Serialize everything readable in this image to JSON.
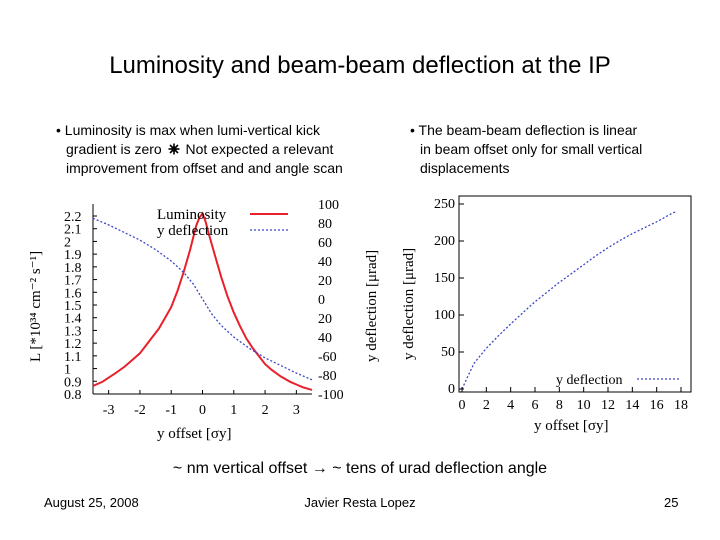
{
  "slide": {
    "title": "Luminosity and beam-beam deflection at the IP",
    "left_bullet": {
      "line1": "• Luminosity is max when lumi-vertical kick",
      "line2_pre": "gradient is zero",
      "line2_post": "Not expected a relevant",
      "line3": "improvement from offset and and angle scan"
    },
    "right_bullet": {
      "line1": "• The beam-beam deflection is  linear",
      "line2": "in beam offset only for small vertical",
      "line3": "displacements"
    },
    "conclusion": "~ nm vertical offset → ~ tens of urad deflection angle",
    "footer": {
      "date": "August 25, 2008",
      "author": "Javier Resta Lopez",
      "page": "25"
    }
  },
  "colors": {
    "luminosity": "#e8202a",
    "deflection": "#3a46c8"
  },
  "chart_data": [
    {
      "type": "line",
      "xlabel": "y offset [σy]",
      "ylabel_left": "L [*10³⁴ cm⁻² s⁻¹]",
      "ylabel_right": "y deflection [μrad]",
      "xlim": [
        -3.5,
        3.5
      ],
      "ylim_left": [
        0.8,
        2.2
      ],
      "ylim_right": [
        -100,
        100
      ],
      "x_ticks": [
        "-3",
        "-2",
        "-1",
        "0",
        "1",
        "2",
        "3"
      ],
      "x_tick_values": [
        -3,
        -2,
        -1,
        0,
        1,
        2,
        3
      ],
      "y_ticks_left": [
        "2.2",
        "2.1",
        "2",
        "1.9",
        "1.8",
        "1.7",
        "1.6",
        "1.5",
        "1.4",
        "1.3",
        "1.2",
        "1.1",
        "1",
        "0.9",
        "0.8"
      ],
      "y_ticks_right": [
        "100",
        "80",
        "60",
        "40",
        "20",
        "0",
        "20",
        "40",
        "-60",
        "-80",
        "-100"
      ],
      "legend": {
        "placement": "top-right",
        "entries": [
          "Luminosity",
          "y deflection"
        ]
      },
      "series": [
        {
          "name": "Luminosity",
          "axis": "left",
          "x": [
            -3.5,
            -3.2,
            -3.0,
            -2.8,
            -2.5,
            -2.2,
            -2.0,
            -1.8,
            -1.6,
            -1.4,
            -1.2,
            -1.0,
            -0.8,
            -0.6,
            -0.4,
            -0.2,
            -0.1,
            0.0,
            0.1,
            0.2,
            0.4,
            0.6,
            0.8,
            1.0,
            1.2,
            1.4,
            1.6,
            1.8,
            2.0,
            2.2,
            2.5,
            2.8,
            3.0,
            3.2,
            3.5
          ],
          "y": [
            0.86,
            0.89,
            0.92,
            0.95,
            1.0,
            1.06,
            1.1,
            1.16,
            1.22,
            1.28,
            1.36,
            1.44,
            1.56,
            1.7,
            1.86,
            2.04,
            2.1,
            2.13,
            2.07,
            1.98,
            1.82,
            1.66,
            1.52,
            1.4,
            1.3,
            1.21,
            1.14,
            1.08,
            1.02,
            0.98,
            0.93,
            0.89,
            0.87,
            0.85,
            0.83
          ]
        },
        {
          "name": "y deflection",
          "axis": "right",
          "x": [
            -3.5,
            -3.0,
            -2.5,
            -2.0,
            -1.5,
            -1.0,
            -0.6,
            -0.3,
            -0.15,
            0.0,
            0.15,
            0.3,
            0.6,
            1.0,
            1.5,
            2.0,
            2.5,
            3.0,
            3.5
          ],
          "y": [
            85,
            78,
            70,
            62,
            52,
            40,
            28,
            16,
            8,
            0,
            -8,
            -16,
            -28,
            -40,
            -52,
            -62,
            -70,
            -78,
            -85
          ]
        }
      ]
    },
    {
      "type": "line",
      "xlabel": "y offset [σy]",
      "ylabel": "y deflection [μrad]",
      "xlim": [
        0,
        18
      ],
      "ylim": [
        0,
        250
      ],
      "x_ticks": [
        "0",
        "2",
        "4",
        "6",
        "8",
        "10",
        "12",
        "14",
        "16",
        "18"
      ],
      "y_ticks": [
        "250",
        "200",
        "150",
        "100",
        "50",
        "0"
      ],
      "y_tick_values": [
        250,
        200,
        150,
        100,
        50,
        0
      ],
      "legend": {
        "placement": "bottom-right",
        "entries": [
          "y deflection"
        ]
      },
      "series": [
        {
          "name": "y deflection",
          "x": [
            0,
            0.5,
            1,
            2,
            3,
            4,
            5,
            6,
            7,
            8,
            9,
            10,
            11,
            12,
            13,
            14,
            15,
            16,
            17,
            17.6
          ],
          "y": [
            0,
            18,
            35,
            55,
            72,
            88,
            103,
            118,
            131,
            144,
            156,
            168,
            180,
            191,
            201,
            210,
            218,
            226,
            235,
            240
          ]
        }
      ]
    }
  ]
}
